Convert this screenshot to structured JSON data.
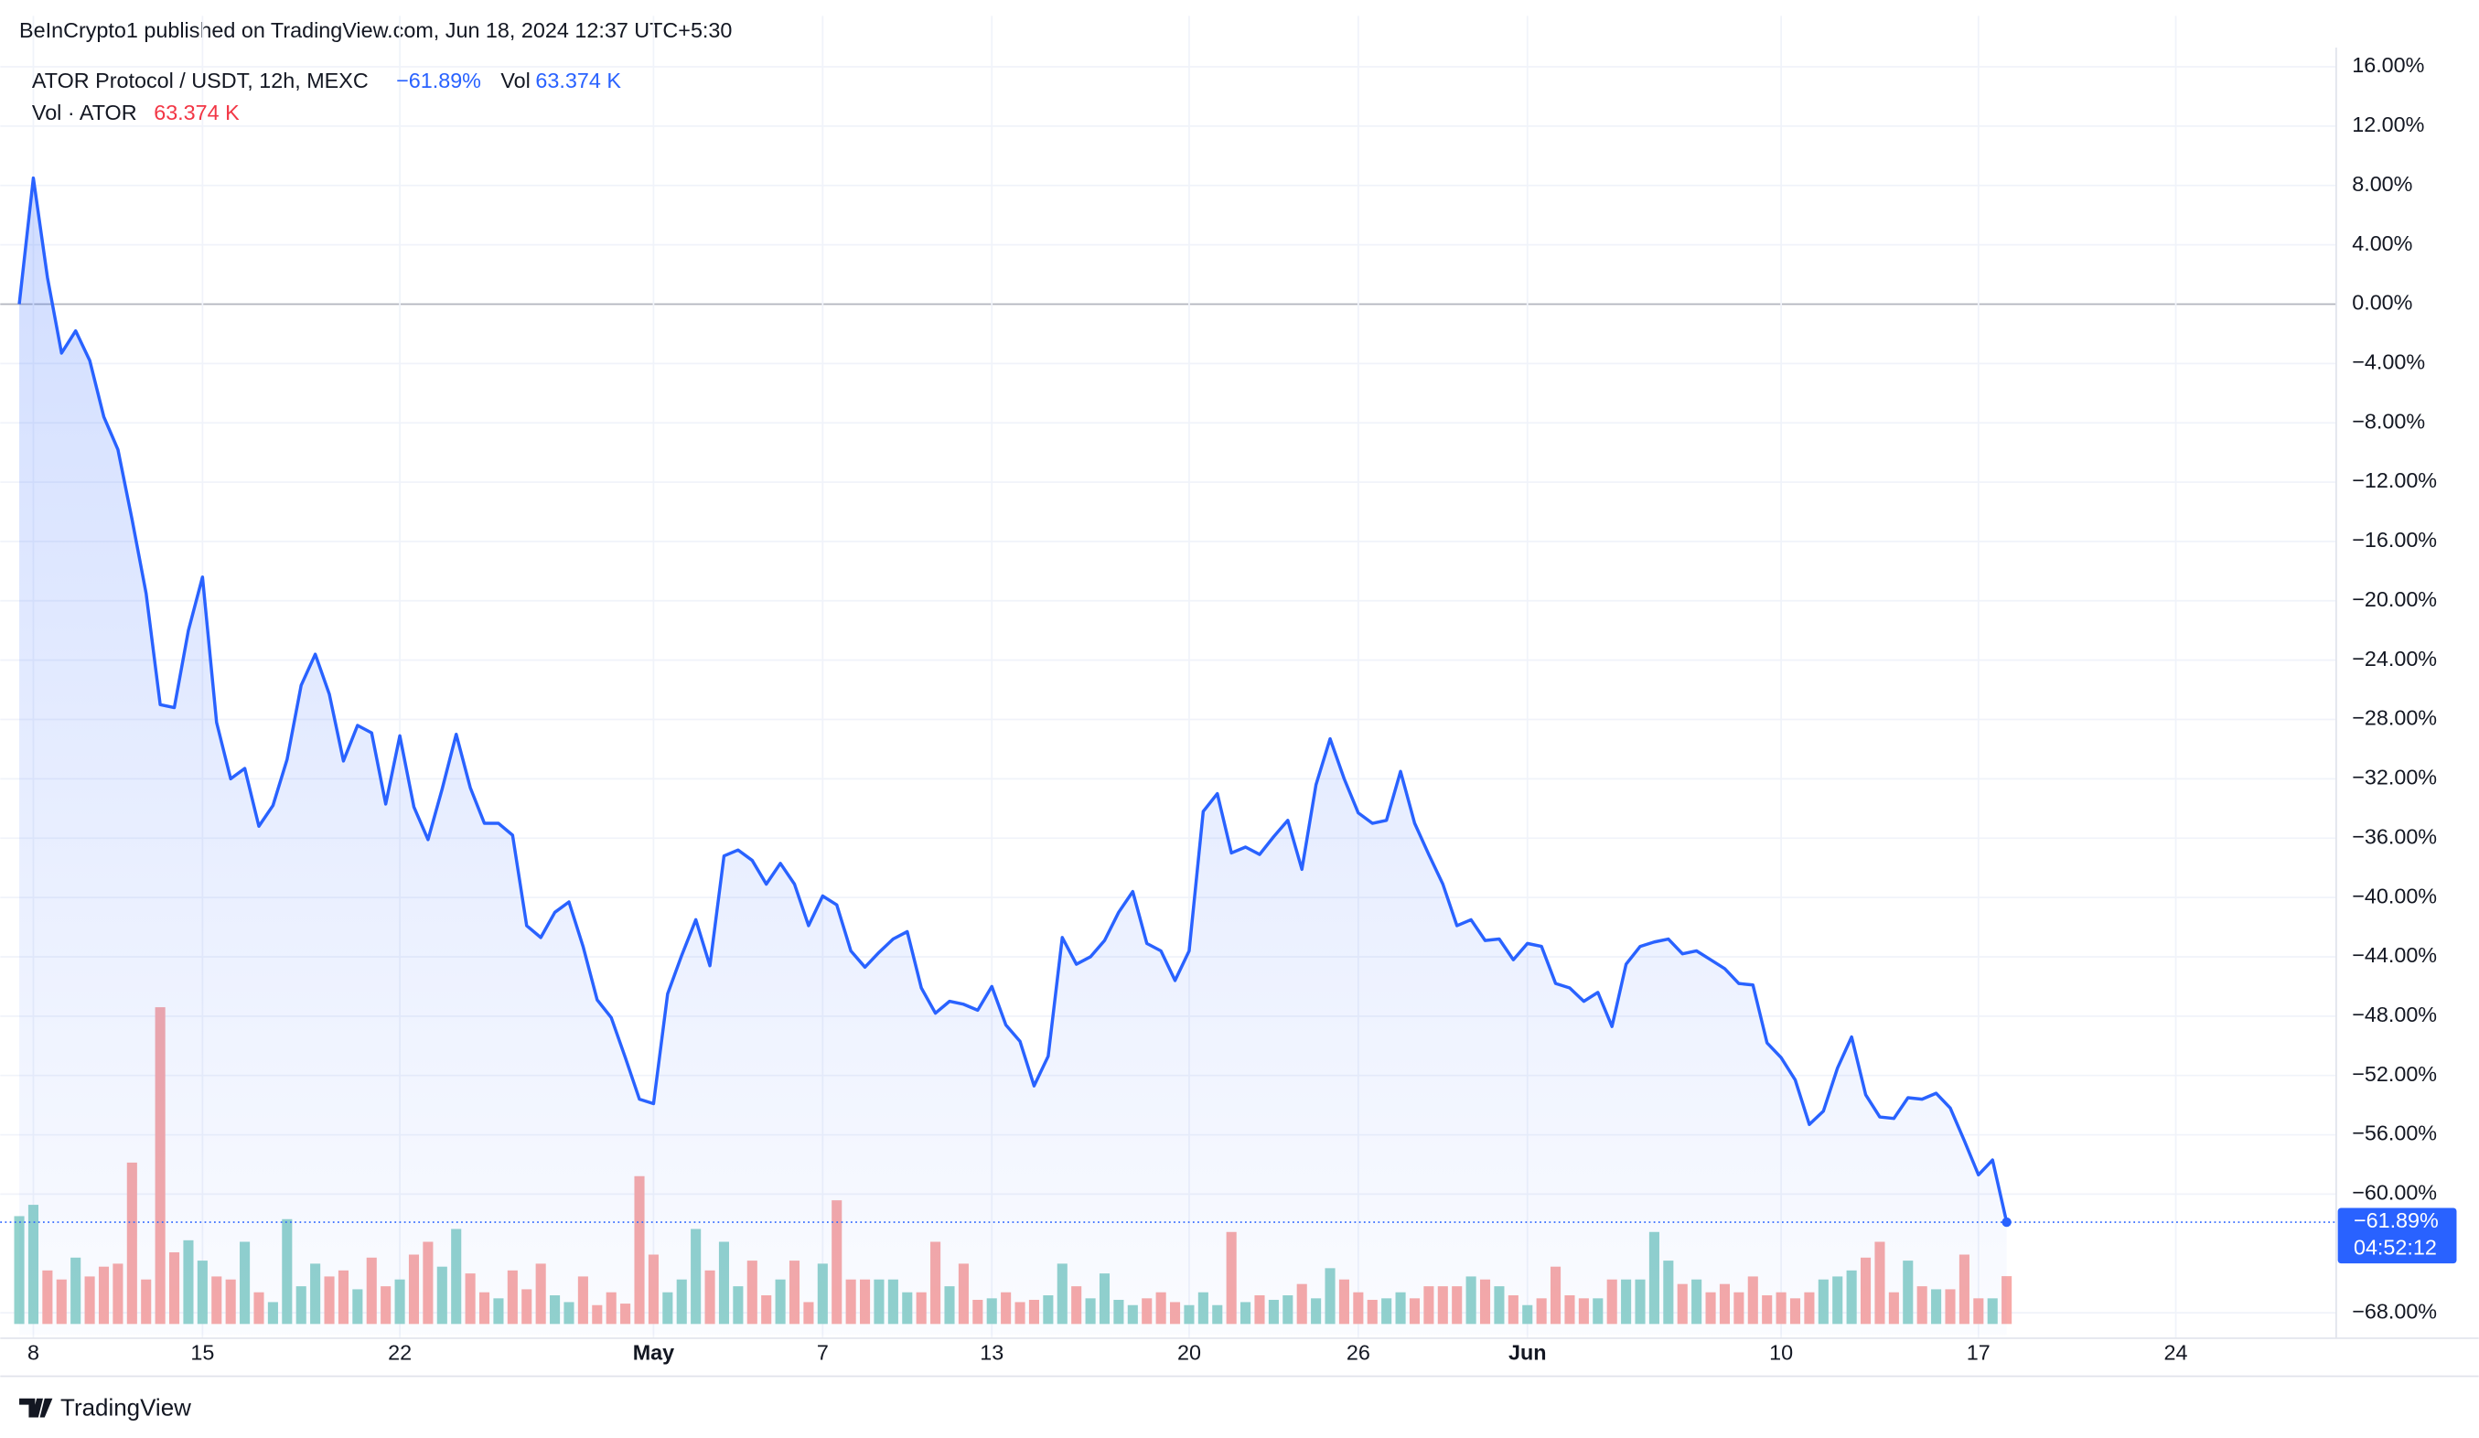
{
  "page_header": "BeInCrypto1 published on TradingView.com, Jun 18, 2024 12:37 UTC+5:30",
  "footer_brand": "TradingView",
  "chart_data": {
    "type": "line",
    "categories": [
      null,
      "8",
      null,
      null,
      null,
      null,
      null,
      null,
      null,
      null,
      null,
      null,
      null,
      "15",
      null,
      null,
      null,
      null,
      null,
      null,
      null,
      null,
      null,
      null,
      null,
      null,
      null,
      "22",
      null,
      null,
      null,
      null,
      null,
      null,
      null,
      null,
      null,
      null,
      null,
      null,
      null,
      null,
      null,
      null,
      null,
      "May",
      null,
      null,
      null,
      null,
      null,
      null,
      null,
      null,
      null,
      null,
      null,
      "7",
      null,
      null,
      null,
      null,
      null,
      null,
      null,
      null,
      null,
      null,
      null,
      "13",
      null,
      null,
      null,
      null,
      null,
      null,
      null,
      null,
      null,
      null,
      null,
      null,
      null,
      "20",
      null,
      null,
      null,
      null,
      null,
      null,
      null,
      null,
      null,
      null,
      null,
      "26",
      null,
      null,
      null,
      null,
      null,
      null,
      null,
      null,
      null,
      null,
      null,
      "Jun",
      null,
      null,
      null,
      null,
      null,
      null,
      null,
      null,
      null,
      null,
      null,
      null,
      null,
      null,
      null,
      null,
      null,
      "10",
      null,
      null,
      null,
      null,
      null,
      null,
      null,
      null,
      null,
      null,
      null,
      null,
      null,
      "17",
      null,
      null,
      null,
      null,
      null,
      null,
      null,
      null,
      null,
      null,
      null,
      null,
      null,
      "24"
    ],
    "series": [
      {
        "name": "ATOR Protocol / USDT, 12h, MEXC",
        "color": "#2962ff",
        "legend_value": "−61.89%",
        "last_label": "−61.89%",
        "values": [
          0,
          8.5,
          1.8,
          -3.3,
          -1.8,
          -3.8,
          -7.6,
          -9.8,
          -14.5,
          -19.5,
          -27,
          -27.2,
          -22,
          -18.4,
          -28.2,
          -32,
          -31.3,
          -35.2,
          -33.8,
          -30.7,
          -25.7,
          -23.6,
          -26.3,
          -30.8,
          -28.4,
          -28.9,
          -33.7,
          -29.1,
          -33.9,
          -36.1,
          -32.7,
          -29,
          -32.6,
          -35,
          -35,
          -35.8,
          -41.9,
          -42.7,
          -41,
          -40.3,
          -43.3,
          -46.9,
          -48.1,
          -50.8,
          -53.6,
          -53.9,
          -46.5,
          -43.9,
          -41.5,
          -44.6,
          -37.2,
          -36.8,
          -37.5,
          -39.1,
          -37.7,
          -39.1,
          -41.9,
          -39.9,
          -40.5,
          -43.6,
          -44.7,
          -43.7,
          -42.8,
          -42.3,
          -46.1,
          -47.8,
          -47,
          -47.2,
          -47.6,
          -46,
          -48.6,
          -49.7,
          -52.7,
          -50.7,
          -42.7,
          -44.5,
          -44,
          -42.9,
          -41,
          -39.6,
          -43.1,
          -43.6,
          -45.6,
          -43.6,
          -34.2,
          -33,
          -37,
          -36.6,
          -37.1,
          -35.9,
          -34.8,
          -38.1,
          -32.4,
          -29.3,
          -32,
          -34.3,
          -35,
          -34.8,
          -31.5,
          -35,
          -37.1,
          -39.1,
          -41.9,
          -41.5,
          -42.9,
          -42.8,
          -44.2,
          -43.1,
          -43.3,
          -45.8,
          -46.1,
          -47,
          -46.4,
          -48.7,
          -44.5,
          -43.3,
          -43,
          -42.8,
          -43.8,
          -43.6,
          -44.2,
          -44.8,
          -45.8,
          -45.9,
          -49.8,
          -50.8,
          -52.3,
          -55.3,
          -54.4,
          -51.5,
          -49.4,
          -53.3,
          -54.8,
          -54.9,
          -53.5,
          -53.6,
          -53.2,
          -54.2,
          -56.4,
          -58.7,
          -57.7,
          -61.89,
          null,
          null,
          null,
          null,
          null,
          null,
          null,
          null,
          null,
          null,
          null,
          null
        ]
      },
      {
        "name": "Vol · ATOR",
        "color": "#f7a9a7",
        "up_color": "#92d2cc",
        "legend_value": "63.374 K",
        "values": [
          143,
          158,
          71,
          59,
          88,
          63,
          76,
          80,
          214,
          59,
          420,
          95,
          111,
          84,
          63,
          59,
          109,
          42,
          29,
          139,
          50,
          80,
          63,
          71,
          46,
          88,
          50,
          59,
          92,
          109,
          76,
          126,
          67,
          42,
          34,
          71,
          46,
          80,
          38,
          29,
          63,
          25,
          42,
          27,
          196,
          92,
          42,
          59,
          126,
          71,
          109,
          50,
          84,
          38,
          59,
          84,
          29,
          80,
          164,
          59,
          59,
          59,
          59,
          42,
          42,
          109,
          50,
          80,
          32,
          34,
          42,
          29,
          32,
          38,
          80,
          50,
          34,
          67,
          32,
          25,
          34,
          42,
          29,
          25,
          42,
          25,
          122,
          29,
          38,
          32,
          38,
          53,
          34,
          74,
          59,
          42,
          32,
          34,
          42,
          34,
          50,
          50,
          50,
          63,
          59,
          50,
          38,
          25,
          34,
          76,
          38,
          34,
          34,
          59,
          59,
          59,
          122,
          84,
          53,
          59,
          42,
          53,
          42,
          63,
          38,
          42,
          34,
          42,
          59,
          63,
          71,
          88,
          109,
          42,
          84,
          50,
          46,
          46,
          92,
          34,
          34,
          63.374,
          null,
          null,
          null,
          null,
          null,
          null,
          null,
          null,
          null,
          null,
          null,
          null
        ]
      }
    ],
    "volume_label": "Vol",
    "countdown": "04:52:12",
    "ylim": [
      -69.5,
      17.3
    ],
    "yticks": [
      {
        "value": 16,
        "label": "16.00%"
      },
      {
        "value": 12,
        "label": "12.00%"
      },
      {
        "value": 8,
        "label": "8.00%"
      },
      {
        "value": 4,
        "label": "4.00%"
      },
      {
        "value": 0,
        "label": "0.00%"
      },
      {
        "value": -4,
        "label": "−4.00%"
      },
      {
        "value": -8,
        "label": "−8.00%"
      },
      {
        "value": -12,
        "label": "−12.00%"
      },
      {
        "value": -16,
        "label": "−16.00%"
      },
      {
        "value": -20,
        "label": "−20.00%"
      },
      {
        "value": -24,
        "label": "−24.00%"
      },
      {
        "value": -28,
        "label": "−28.00%"
      },
      {
        "value": -32,
        "label": "−32.00%"
      },
      {
        "value": -36,
        "label": "−36.00%"
      },
      {
        "value": -40,
        "label": "−40.00%"
      },
      {
        "value": -44,
        "label": "−44.00%"
      },
      {
        "value": -48,
        "label": "−48.00%"
      },
      {
        "value": -52,
        "label": "−52.00%"
      },
      {
        "value": -56,
        "label": "−56.00%"
      },
      {
        "value": -60,
        "label": "−60.00%"
      },
      {
        "value": -68,
        "label": "−68.00%"
      }
    ],
    "grid": true
  }
}
